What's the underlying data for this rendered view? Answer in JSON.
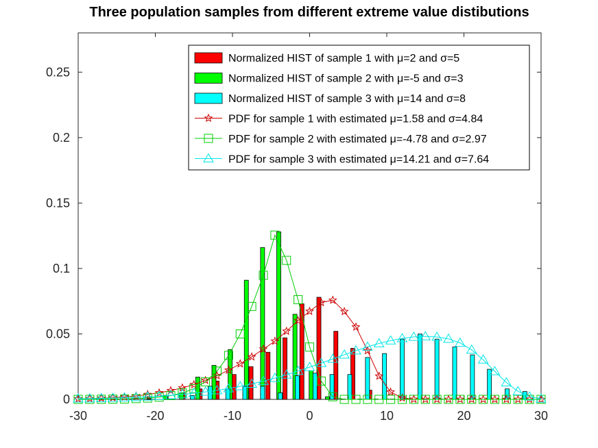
{
  "chart_data": {
    "type": "bar",
    "title": "Three population samples from different extreme value distibutions",
    "xlabel": "",
    "ylabel": "",
    "xlim": [
      -30,
      30
    ],
    "ylim": [
      0,
      0.28
    ],
    "xticks": [
      -30,
      -20,
      -10,
      0,
      10,
      20,
      30
    ],
    "xtick_labels": [
      "-30",
      "-20",
      "-10",
      "0",
      "10",
      "20",
      "30"
    ],
    "yticks": [
      0,
      0.05,
      0.1,
      0.15,
      0.2,
      0.25
    ],
    "ytick_labels": [
      "0",
      "0.05",
      "0.1",
      "0.15",
      "0.2",
      "0.25"
    ],
    "grid": false,
    "legend_position": "top-right",
    "hist_series": [
      {
        "name": "Normalized HIST of sample 1 with μ=2 and σ=5",
        "color": "#ff0000",
        "x": [
          -29.6,
          -27.4,
          -25.2,
          -23.0,
          -20.8,
          -18.6,
          -16.4,
          -14.2,
          -12.0,
          -9.8,
          -7.6,
          -5.4,
          -3.2,
          -1.0,
          1.2,
          3.4,
          5.6,
          7.8,
          10.0,
          12.2,
          14.4,
          16.6,
          18.8,
          21.0,
          23.2,
          25.4,
          27.6
        ],
        "values": [
          0,
          0,
          0,
          0,
          0.002,
          0.003,
          0.005,
          0.008,
          0.014,
          0.019,
          0.025,
          0.036,
          0.047,
          0.073,
          0.078,
          0.052,
          0.039,
          0.007,
          0,
          0,
          0,
          0,
          0,
          0,
          0,
          0,
          0
        ]
      },
      {
        "name": "Normalized HIST of sample 2 with μ=-5 and σ=3",
        "color": "#00ff00",
        "x": [
          -29.2,
          -27.1,
          -25.0,
          -22.9,
          -20.8,
          -18.7,
          -16.6,
          -14.5,
          -12.4,
          -10.3,
          -8.2,
          -6.1,
          -4.0,
          -1.9,
          0.2,
          2.3,
          4.4,
          6.5,
          8.6,
          10.7,
          12.8,
          14.9,
          17.0,
          19.1,
          21.2,
          23.3,
          25.4
        ],
        "values": [
          0,
          0,
          0,
          0,
          0,
          0.003,
          0.005,
          0.017,
          0.026,
          0.038,
          0.091,
          0.116,
          0.128,
          0.065,
          0.022,
          0.002,
          0,
          0,
          0,
          0,
          0,
          0,
          0,
          0,
          0,
          0,
          0
        ]
      },
      {
        "name": "Normalized HIST of sample 3 with μ=14 and σ=8",
        "color": "#00ffff",
        "x": [
          -15.2,
          -12.9,
          -10.6,
          -8.4,
          -6.1,
          -3.8,
          -1.6,
          0.7,
          2.9,
          5.2,
          7.5,
          9.7,
          12.0,
          14.3,
          16.5,
          18.8,
          21.1,
          23.3,
          25.6,
          27.9
        ],
        "values": [
          0.003,
          0.01,
          0.008,
          0.01,
          0.01,
          0.005,
          0.018,
          0.02,
          0.019,
          0.019,
          0.032,
          0.035,
          0.046,
          0.05,
          0.046,
          0.04,
          0.034,
          0.023,
          0.008,
          0.006
        ]
      }
    ],
    "pdf_series": [
      {
        "name": "PDF for sample 1 with estimated μ=1.58 and σ=4.84",
        "color": "#cc0000",
        "marker": "star",
        "x": [
          -30,
          -28.5,
          -27,
          -25.5,
          -24,
          -22.5,
          -21,
          -19.5,
          -18,
          -16.5,
          -15,
          -13.5,
          -12,
          -10.5,
          -9,
          -7.5,
          -6,
          -4.5,
          -3,
          -1.5,
          0,
          1.5,
          3,
          4.5,
          6,
          7.5,
          9,
          10.5,
          12,
          13.5,
          15,
          16.5,
          18,
          19.5,
          21,
          22.5,
          24,
          25.5,
          27,
          28.5,
          30
        ],
        "values": [
          0.0004,
          0.0006,
          0.0009,
          0.0013,
          0.0019,
          0.0026,
          0.0037,
          0.005,
          0.0067,
          0.0088,
          0.0113,
          0.0145,
          0.0181,
          0.0223,
          0.0272,
          0.0325,
          0.0384,
          0.0445,
          0.0521,
          0.0602,
          0.0673,
          0.074,
          0.0758,
          0.0671,
          0.0553,
          0.0372,
          0.0178,
          0.0056,
          0.0011,
          0.0001,
          0,
          0,
          0,
          0,
          0,
          0,
          0,
          0,
          0,
          0,
          0
        ]
      },
      {
        "name": "PDF for sample 2 with estimated μ=-4.78 and σ=2.97",
        "color": "#00cc00",
        "marker": "square",
        "x": [
          -30,
          -28.5,
          -27,
          -25.5,
          -24,
          -22.5,
          -21,
          -19.5,
          -18,
          -16.5,
          -15,
          -13.5,
          -12,
          -10.5,
          -9,
          -7.5,
          -6,
          -4.5,
          -3,
          -1.5,
          0,
          1.5,
          3,
          4.5,
          6,
          7.5,
          9,
          10.5,
          12,
          13.5,
          15,
          16.5,
          18,
          19.5,
          21,
          22.5,
          24,
          25.5,
          27,
          28.5,
          30
        ],
        "values": [
          0,
          0,
          0.0001,
          0.0002,
          0.0003,
          0.0006,
          0.001,
          0.0017,
          0.0029,
          0.0049,
          0.0082,
          0.0134,
          0.0216,
          0.0336,
          0.05,
          0.071,
          0.0948,
          0.1255,
          0.1062,
          0.0762,
          0.04,
          0.014,
          0.002,
          0,
          0,
          0,
          0,
          0,
          0,
          0,
          0,
          0,
          0,
          0,
          0,
          0,
          0,
          0,
          0,
          0,
          0
        ]
      },
      {
        "name": "PDF for sample 3 with estimated μ=14.21 and σ=7.64",
        "color": "#00e5e5",
        "marker": "triangle",
        "x": [
          -30,
          -28.5,
          -27,
          -25.5,
          -24,
          -22.5,
          -21,
          -19.5,
          -18,
          -16.5,
          -15,
          -13.5,
          -12,
          -10.5,
          -9,
          -7.5,
          -6,
          -4.5,
          -3,
          -1.5,
          0,
          1.5,
          3,
          4.5,
          6,
          7.5,
          9,
          10.5,
          12,
          13.5,
          15,
          16.5,
          18,
          19.5,
          21,
          22.5,
          24,
          25.5,
          27,
          28.5,
          30
        ],
        "values": [
          0.0005,
          0.0006,
          0.0008,
          0.001,
          0.0013,
          0.0016,
          0.002,
          0.0025,
          0.0031,
          0.0038,
          0.0047,
          0.0057,
          0.0069,
          0.0083,
          0.0099,
          0.0118,
          0.0139,
          0.0162,
          0.0188,
          0.0216,
          0.0246,
          0.0277,
          0.0309,
          0.0341,
          0.0372,
          0.0401,
          0.0427,
          0.0449,
          0.0466,
          0.0477,
          0.0481,
          0.0477,
          0.0462,
          0.0431,
          0.0378,
          0.0303,
          0.0214,
          0.0128,
          0.0061,
          0.0021,
          0.0004
        ]
      }
    ],
    "legend": [
      {
        "label": "Normalized HIST of sample 1 with μ=2 and σ=5",
        "kind": "patch",
        "color": "#ff0000"
      },
      {
        "label": "Normalized HIST of sample 2 with μ=-5 and σ=3",
        "kind": "patch",
        "color": "#00ff00"
      },
      {
        "label": "Normalized HIST of sample 3 with μ=14 and σ=8",
        "kind": "patch",
        "color": "#00ffff"
      },
      {
        "label": "PDF for sample 1 with estimated μ=1.58 and σ=4.84",
        "kind": "line",
        "marker": "star",
        "color": "#cc0000"
      },
      {
        "label": "PDF for sample 2 with estimated μ=-4.78 and σ=2.97",
        "kind": "line",
        "marker": "square",
        "color": "#00cc00"
      },
      {
        "label": "PDF for sample 3 with estimated μ=14.21 and σ=7.64",
        "kind": "line",
        "marker": "triangle",
        "color": "#00e5e5"
      }
    ]
  }
}
